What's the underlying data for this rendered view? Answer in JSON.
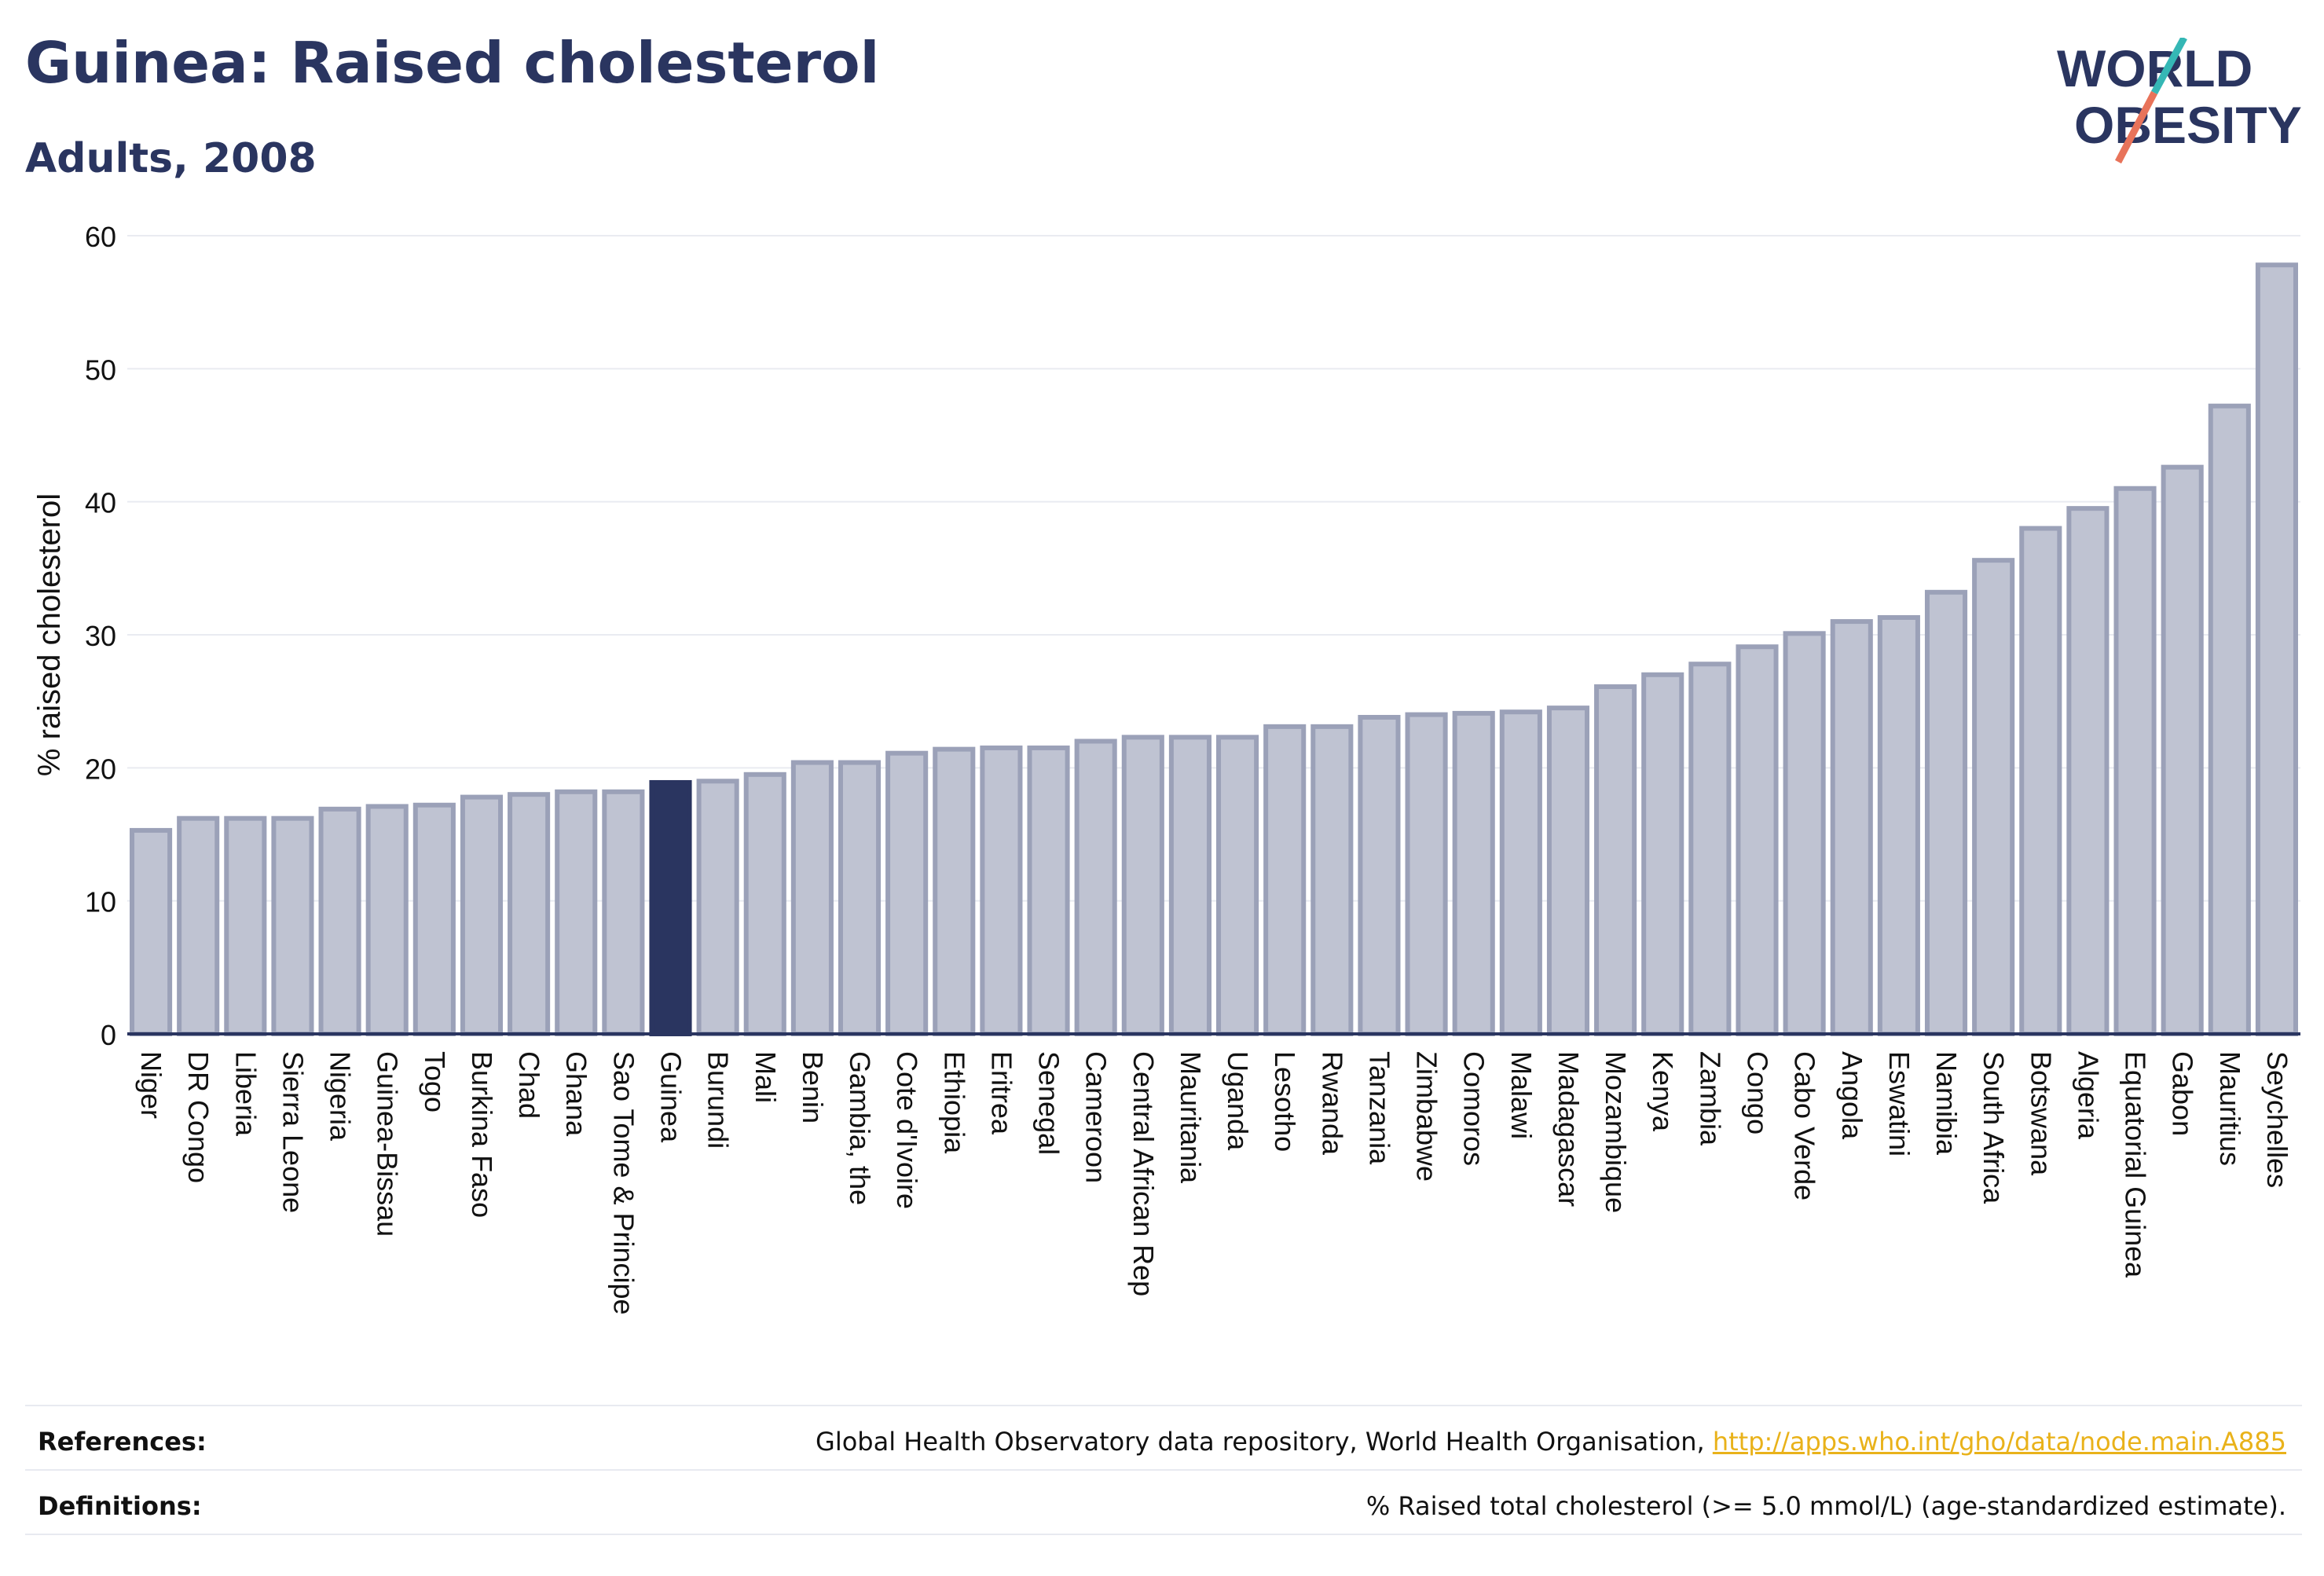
{
  "header": {
    "title": "Guinea: Raised cholesterol",
    "subtitle": "Adults, 2008"
  },
  "logo": {
    "line1": "WORLD",
    "line2": "OBESITY",
    "accent_colors": [
      "#35b7b5",
      "#e8735a"
    ],
    "text_color": "#2a3560"
  },
  "chart_data": {
    "type": "bar",
    "ylabel": "% raised cholesterol",
    "xlabel": "",
    "ylim": [
      0,
      60
    ],
    "yticks": [
      0,
      10,
      20,
      30,
      40,
      50,
      60
    ],
    "grid": true,
    "highlight": "Guinea",
    "colors": {
      "default": "#bfc3d2",
      "default_stroke": "#9ba1b8",
      "highlight": "#2a3560",
      "axis": "#2a3560",
      "grid": "#e9ebf1"
    },
    "categories": [
      "Niger",
      "DR Congo",
      "Liberia",
      "Sierra Leone",
      "Nigeria",
      "Guinea-Bissau",
      "Togo",
      "Burkina Faso",
      "Chad",
      "Ghana",
      "Sao Tome & Principe",
      "Guinea",
      "Burundi",
      "Mali",
      "Benin",
      "Gambia, the",
      "Cote d'Ivoire",
      "Ethiopia",
      "Eritrea",
      "Senegal",
      "Cameroon",
      "Central African Rep",
      "Mauritania",
      "Uganda",
      "Lesotho",
      "Rwanda",
      "Tanzania",
      "Zimbabwe",
      "Comoros",
      "Malawi",
      "Madagascar",
      "Mozambique",
      "Kenya",
      "Zambia",
      "Congo",
      "Cabo Verde",
      "Angola",
      "Eswatini",
      "Namibia",
      "South Africa",
      "Botswana",
      "Algeria",
      "Equatorial Guinea",
      "Gabon",
      "Mauritius",
      "Seychelles"
    ],
    "values": [
      15.3,
      16.2,
      16.2,
      16.2,
      16.9,
      17.1,
      17.2,
      17.8,
      18.0,
      18.2,
      18.2,
      18.9,
      19.0,
      19.5,
      20.4,
      20.4,
      21.1,
      21.4,
      21.5,
      21.5,
      22.0,
      22.3,
      22.3,
      22.3,
      23.1,
      23.1,
      23.8,
      24.0,
      24.1,
      24.2,
      24.5,
      26.1,
      27.0,
      27.8,
      29.1,
      30.1,
      31.0,
      31.3,
      33.2,
      35.6,
      38.0,
      39.5,
      41.0,
      42.6,
      47.2,
      57.8
    ]
  },
  "footer": {
    "references_label": "References:",
    "references_text": "Global Health Observatory data repository, World Health Organisation, ",
    "references_link": "http://apps.who.int/gho/data/node.main.A885",
    "definitions_label": "Definitions:",
    "definitions_text": "% Raised total cholesterol (>= 5.0 mmol/L) (age-standardized estimate)."
  }
}
